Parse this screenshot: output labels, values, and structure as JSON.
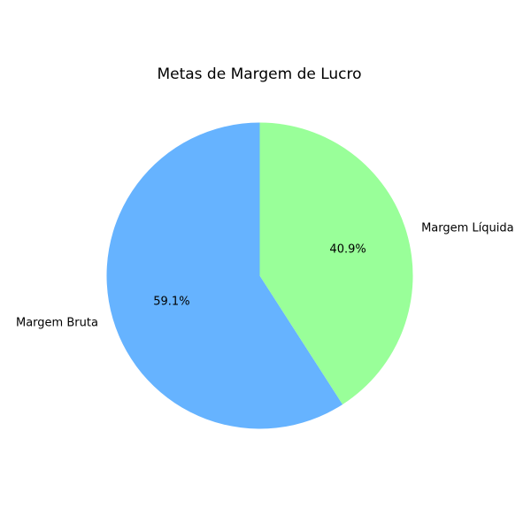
{
  "chart_data": {
    "type": "pie",
    "title": "Metas de Margem de Lucro",
    "categories": [
      "Margem Bruta",
      "Margem Líquida"
    ],
    "values": [
      59.1,
      40.9
    ],
    "percent_labels": [
      "59.1%",
      "40.9%"
    ],
    "colors": [
      "#66b3ff",
      "#99ff99"
    ],
    "start_angle_deg": 90,
    "direction": "counterclockwise"
  }
}
